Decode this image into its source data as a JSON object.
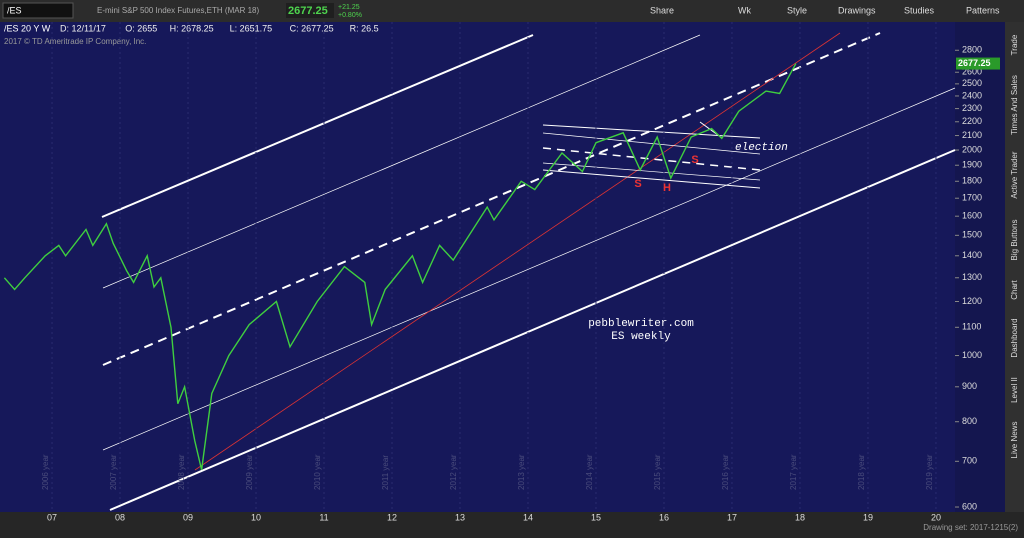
{
  "toolbar": {
    "symbol": "/ES",
    "description": "E-mini S&P 500 Index Futures,ETH (MAR 18)",
    "last": "2677.25",
    "change": "+21.25",
    "change_pct": "+0.80%",
    "buttons": [
      "Share",
      "Wk",
      "Style",
      "Drawings",
      "Studies",
      "Patterns"
    ]
  },
  "header": {
    "study": "/ES 20 Y W",
    "fields": [
      "D: 12/11/17",
      "O: 2655",
      "H: 2678.25",
      "L: 2651.75",
      "C: 2677.25",
      "R: 26.5"
    ],
    "copyright": "2017 © TD Ameritrade IP Company, Inc."
  },
  "chart": {
    "type": "line",
    "log_scale": true,
    "color": "#3fcf3f",
    "last_price": {
      "value": 2677.25,
      "label": "2677.25"
    },
    "xlim": [
      2006.235,
      2020.28
    ],
    "ylim": [
      590,
      3080
    ],
    "yticks": [
      600,
      700,
      800,
      900,
      1000,
      1100,
      1200,
      1300,
      1400,
      1500,
      1600,
      1700,
      1800,
      1900,
      2000,
      2100,
      2200,
      2300,
      2400,
      2500,
      2600,
      2800
    ],
    "xticks": [
      {
        "value": 2007,
        "label": "07"
      },
      {
        "value": 2008,
        "label": "08"
      },
      {
        "value": 2009,
        "label": "09"
      },
      {
        "value": 2010,
        "label": "10"
      },
      {
        "value": 2011,
        "label": "11"
      },
      {
        "value": 2012,
        "label": "12"
      },
      {
        "value": 2013,
        "label": "13"
      },
      {
        "value": 2014,
        "label": "14"
      },
      {
        "value": 2015,
        "label": "15"
      },
      {
        "value": 2016,
        "label": "16"
      },
      {
        "value": 2017,
        "label": "17"
      },
      {
        "value": 2018,
        "label": "18"
      },
      {
        "value": 2019,
        "label": "19"
      },
      {
        "value": 2020,
        "label": "20"
      }
    ],
    "year_labels": [
      "2006 year",
      "2007 year",
      "2008 year",
      "2009 year",
      "2010 year",
      "2011 year",
      "2012 year",
      "2013 year",
      "2014 year",
      "2015 year",
      "2016 year",
      "2017 year",
      "2018 year",
      "2019 year"
    ],
    "x": [
      2006.3,
      2006.45,
      2006.6,
      2006.9,
      2007.1,
      2007.2,
      2007.5,
      2007.6,
      2007.8,
      2007.9,
      2008.1,
      2008.2,
      2008.4,
      2008.5,
      2008.6,
      2008.75,
      2008.85,
      2008.95,
      2009.1,
      2009.2,
      2009.35,
      2009.6,
      2009.9,
      2010.3,
      2010.5,
      2010.9,
      2011.3,
      2011.6,
      2011.7,
      2011.9,
      2012.3,
      2012.45,
      2012.7,
      2012.9,
      2013.4,
      2013.5,
      2013.9,
      2014.1,
      2014.5,
      2014.8,
      2015.0,
      2015.4,
      2015.65,
      2015.9,
      2016.1,
      2016.4,
      2016.7,
      2016.85,
      2017.1,
      2017.5,
      2017.7,
      2017.94
    ],
    "values": [
      1300,
      1250,
      1300,
      1400,
      1450,
      1400,
      1530,
      1450,
      1560,
      1460,
      1330,
      1280,
      1400,
      1260,
      1300,
      1100,
      850,
      900,
      750,
      680,
      880,
      1000,
      1110,
      1200,
      1030,
      1200,
      1350,
      1280,
      1110,
      1250,
      1400,
      1280,
      1450,
      1380,
      1650,
      1580,
      1800,
      1750,
      1980,
      1860,
      2050,
      2120,
      1870,
      2090,
      1820,
      2090,
      2150,
      2080,
      2280,
      2440,
      2420,
      2677.25
    ],
    "annotations": [
      "pebblewriter.com",
      "ES weekly",
      "election",
      "S",
      "H",
      "S"
    ]
  },
  "sidebar": [
    "Trade",
    "Times And Sales",
    "Active Trader",
    "Big Buttons",
    "Chart",
    "Dashboard",
    "Level II",
    "Live News"
  ],
  "status": "Drawing set: 2017-1215(2)"
}
